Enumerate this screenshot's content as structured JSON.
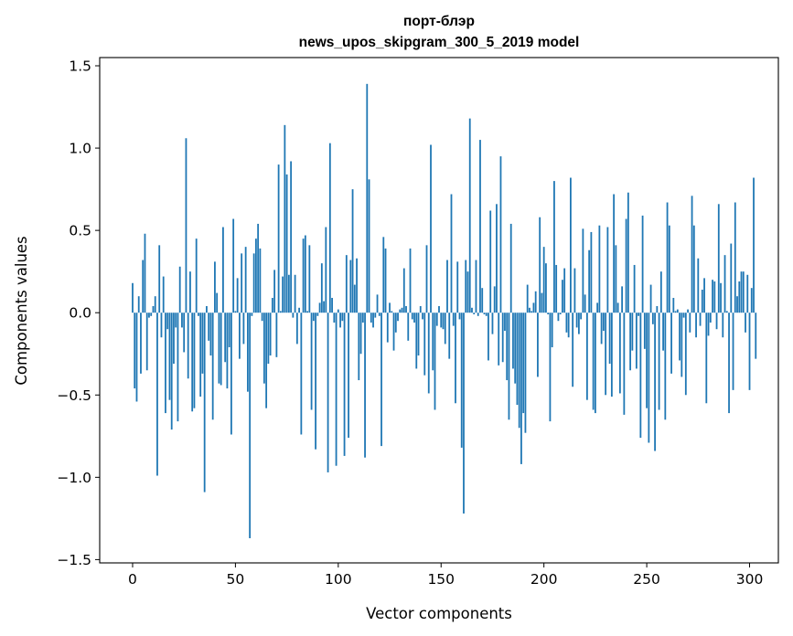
{
  "chart_data": {
    "type": "bar",
    "title": "порт-блэр",
    "subtitle": "news_upos_skipgram_300_5_2019 model",
    "xlabel": "Vector components",
    "ylabel": "Components values",
    "xlim": [
      -16,
      314
    ],
    "ylim": [
      -1.52,
      1.55
    ],
    "xticks": [
      0,
      50,
      100,
      150,
      200,
      250,
      300
    ],
    "xtick_labels": [
      "0",
      "50",
      "100",
      "150",
      "200",
      "250",
      "300"
    ],
    "yticks": [
      -1.5,
      -1.0,
      -0.5,
      0.0,
      0.5,
      1.0,
      1.5
    ],
    "ytick_labels": [
      "−1.5",
      "−1.0",
      "−0.5",
      "0.0",
      "0.5",
      "1.0",
      "1.5"
    ],
    "grid": false,
    "bar_color": "#1f77b4",
    "values": [
      0.18,
      -0.46,
      -0.54,
      0.1,
      -0.37,
      0.32,
      0.48,
      -0.35,
      -0.03,
      -0.02,
      0.04,
      0.1,
      -0.99,
      0.41,
      -0.15,
      0.22,
      -0.61,
      -0.1,
      -0.53,
      -0.71,
      -0.31,
      -0.09,
      -0.66,
      0.28,
      -0.09,
      -0.24,
      1.06,
      -0.4,
      0.25,
      -0.6,
      -0.58,
      0.45,
      -0.02,
      -0.51,
      -0.37,
      -1.09,
      0.04,
      -0.17,
      -0.26,
      -0.65,
      0.31,
      0.12,
      -0.43,
      -0.44,
      0.52,
      -0.3,
      -0.46,
      -0.21,
      -0.74,
      0.57,
      0.01,
      0.21,
      -0.28,
      0.36,
      -0.19,
      0.4,
      -0.48,
      -1.37,
      -0.02,
      0.36,
      0.45,
      0.54,
      0.39,
      -0.05,
      -0.43,
      -0.58,
      -0.31,
      -0.26,
      0.09,
      0.26,
      -0.27,
      0.9,
      0.01,
      0.22,
      1.14,
      0.84,
      0.23,
      0.92,
      -0.03,
      0.23,
      -0.19,
      0.03,
      -0.74,
      0.45,
      0.47,
      0.01,
      0.41,
      -0.59,
      -0.05,
      -0.83,
      -0.02,
      0.06,
      0.3,
      0.07,
      0.52,
      -0.97,
      1.03,
      0.09,
      -0.06,
      -0.93,
      0.02,
      -0.09,
      -0.05,
      -0.87,
      0.35,
      -0.76,
      0.32,
      0.75,
      0.17,
      0.33,
      -0.41,
      -0.25,
      -0.06,
      -0.88,
      1.39,
      0.81,
      -0.06,
      -0.09,
      -0.03,
      0.11,
      -0.02,
      -0.81,
      0.46,
      0.39,
      -0.18,
      0.06,
      0.01,
      -0.23,
      -0.12,
      -0.05,
      0.02,
      0.03,
      0.27,
      0.04,
      -0.17,
      0.39,
      -0.04,
      -0.06,
      -0.34,
      -0.26,
      0.04,
      -0.04,
      -0.38,
      0.41,
      -0.49,
      1.02,
      -0.35,
      -0.59,
      -0.08,
      0.04,
      -0.09,
      -0.1,
      -0.19,
      0.32,
      -0.28,
      0.72,
      -0.08,
      -0.55,
      0.31,
      -0.04,
      -0.82,
      -1.22,
      0.32,
      0.25,
      1.18,
      0.03,
      -0.01,
      0.32,
      -0.02,
      1.05,
      0.15,
      -0.01,
      -0.02,
      -0.29,
      0.62,
      -0.13,
      0.16,
      0.66,
      -0.32,
      0.95,
      -0.3,
      -0.11,
      -0.41,
      -0.65,
      0.54,
      -0.34,
      -0.43,
      -0.56,
      -0.7,
      -0.92,
      -0.61,
      -0.73,
      0.17,
      0.03,
      0.01,
      0.06,
      0.13,
      -0.39,
      0.58,
      0.12,
      0.4,
      0.3,
      -0.01,
      -0.66,
      -0.21,
      0.8,
      0.29,
      -0.05,
      -0.01,
      0.2,
      0.27,
      -0.12,
      -0.15,
      0.82,
      -0.45,
      0.27,
      -0.09,
      -0.13,
      -0.04,
      0.51,
      0.11,
      -0.53,
      0.38,
      0.49,
      -0.59,
      -0.61,
      0.06,
      0.53,
      -0.19,
      -0.11,
      -0.5,
      0.52,
      -0.31,
      -0.51,
      0.72,
      0.41,
      0.06,
      -0.49,
      0.16,
      -0.62,
      0.57,
      0.73,
      -0.35,
      -0.23,
      0.29,
      -0.34,
      -0.02,
      -0.76,
      0.59,
      -0.22,
      -0.58,
      -0.79,
      0.17,
      -0.07,
      -0.84,
      0.04,
      -0.59,
      0.25,
      -0.23,
      -0.65,
      0.67,
      0.53,
      -0.37,
      0.09,
      0.01,
      0.02,
      -0.29,
      -0.39,
      -0.03,
      -0.5,
      0.02,
      -0.12,
      0.71,
      0.53,
      -0.15,
      0.33,
      -0.08,
      0.14,
      0.21,
      -0.55,
      -0.14,
      -0.06,
      0.2,
      0.19,
      -0.1,
      0.66,
      0.18,
      -0.15,
      0.35,
      0.01,
      -0.61,
      0.42,
      -0.47,
      0.67,
      0.1,
      0.19,
      0.25,
      0.25,
      -0.12,
      0.23,
      -0.47,
      0.15,
      0.82,
      -0.28
    ]
  }
}
